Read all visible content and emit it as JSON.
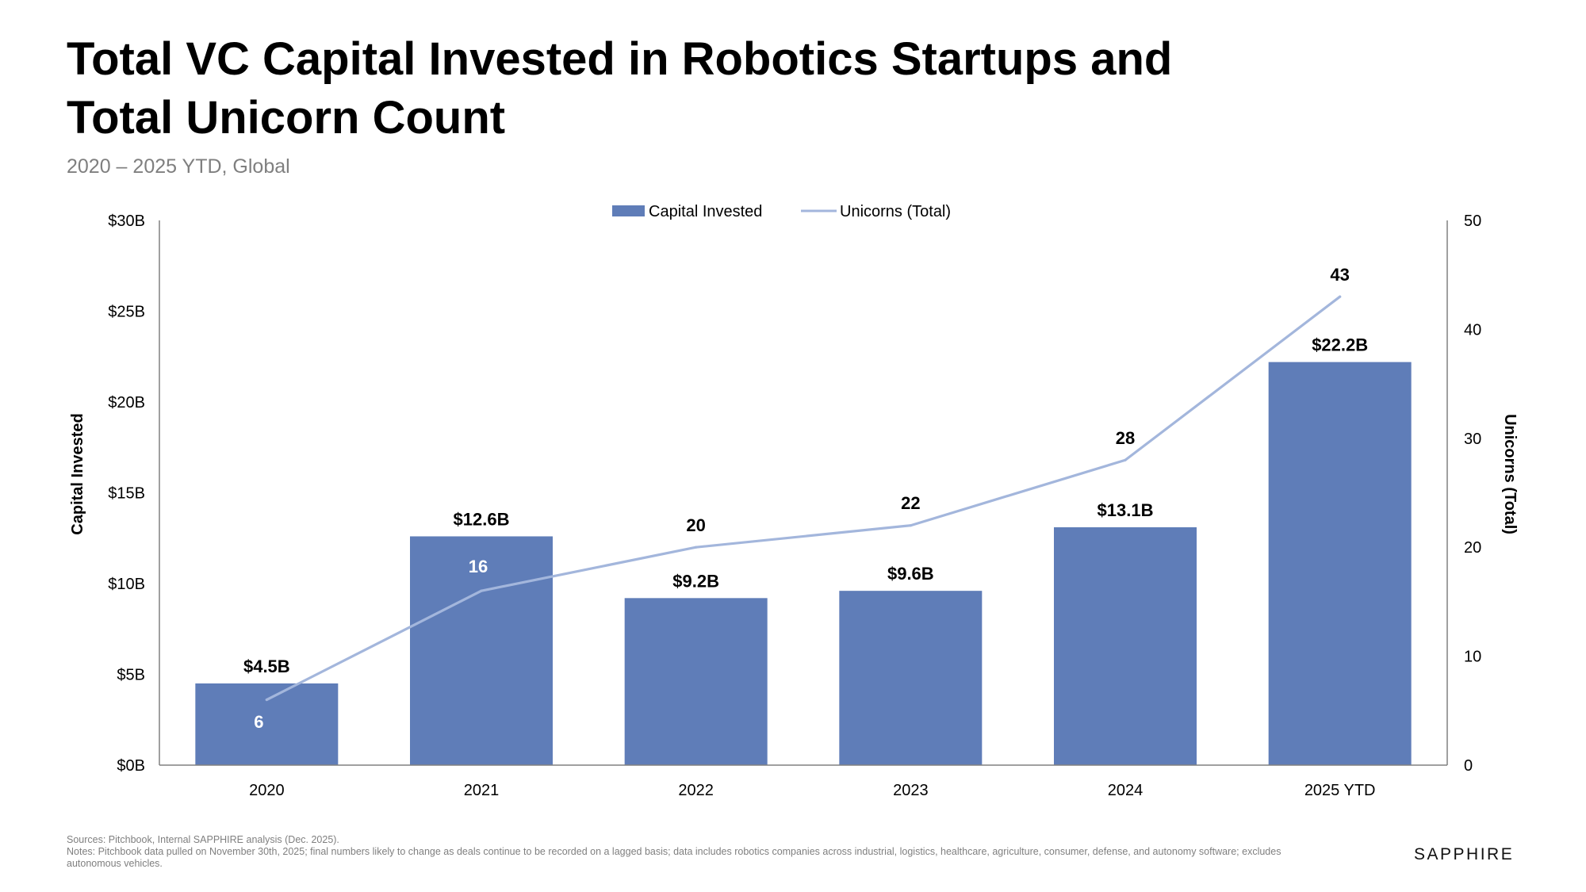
{
  "page": {
    "title_line1": "Total VC Capital Invested in Robotics Startups and",
    "title_line2": "Total Unicorn Count",
    "subtitle": "2020 – 2025 YTD, Global",
    "footer": {
      "sources": "Sources: Pitchbook, Internal SAPPHIRE analysis (Dec. 2025).",
      "notes_line1": "Notes: Pitchbook data pulled on November 30th, 2025; final numbers likely to change as deals continue to be recorded on a lagged basis; data includes robotics companies across industrial, logistics, healthcare, agriculture, consumer, defense, and autonomy software; excludes",
      "notes_line2": "autonomous vehicles."
    },
    "brand": "SAPPHIRE"
  },
  "chart_data": {
    "type": "bar",
    "title": "Total VC Capital Invested in Robotics Startups and Total Unicorn Count",
    "subtitle": "2020 – 2025 YTD, Global",
    "categories": [
      "2020",
      "2021",
      "2022",
      "2023",
      "2024",
      "2025 YTD"
    ],
    "series": [
      {
        "name": "Capital Invested",
        "type": "bar",
        "axis": "left",
        "unit": "$B",
        "values": [
          4.5,
          12.6,
          9.2,
          9.6,
          13.1,
          22.2
        ],
        "labels": [
          "$4.5B",
          "$12.6B",
          "$9.2B",
          "$9.6B",
          "$13.1B",
          "$22.2B"
        ],
        "color": "#5f7db8"
      },
      {
        "name": "Unicorns (Total)",
        "type": "line",
        "axis": "right",
        "values": [
          6,
          16,
          20,
          22,
          28,
          43
        ],
        "labels": [
          "6",
          "16",
          "20",
          "22",
          "28",
          "43"
        ],
        "color": "#a3b6dc"
      }
    ],
    "y_left": {
      "label": "Capital Invested",
      "range": [
        0,
        30
      ],
      "ticks": [
        0,
        5,
        10,
        15,
        20,
        25,
        30
      ],
      "tick_labels": [
        "$0B",
        "$5B",
        "$10B",
        "$15B",
        "$20B",
        "$25B",
        "$30B"
      ]
    },
    "y_right": {
      "label": "Unicorns (Total)",
      "range": [
        0,
        50
      ],
      "ticks": [
        0,
        10,
        20,
        30,
        40,
        50
      ],
      "tick_labels": [
        "0",
        "10",
        "20",
        "30",
        "40",
        "50"
      ]
    },
    "legend": {
      "position": "top-center",
      "entries": [
        "Capital Invested",
        "Unicorns (Total)"
      ]
    },
    "grid": false
  }
}
